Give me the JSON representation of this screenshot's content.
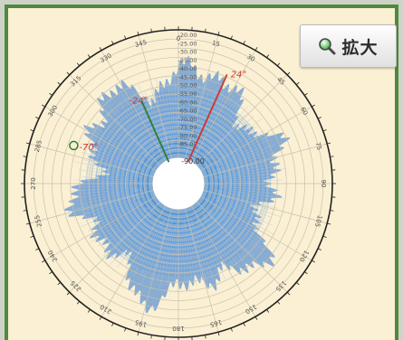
{
  "zoom_button": {
    "label": "拡大",
    "icon": "magnifier-icon"
  },
  "chart_data": {
    "type": "polar",
    "center_label": "-90.00",
    "radial_ticks": [
      "-20.00",
      "-25.00",
      "-30.00",
      "-35.00",
      "-40.00",
      "-45.00",
      "-50.00",
      "-55.00",
      "-60.00",
      "-65.00",
      "-70.00",
      "-75.00",
      "-80.00",
      "-85.00"
    ],
    "angle_labels": [
      "345",
      "0",
      "15",
      "30",
      "45",
      "60",
      "75",
      "90",
      "105",
      "120",
      "135",
      "150",
      "165",
      "180",
      "195",
      "210",
      "225",
      "240",
      "255",
      "270",
      "285",
      "300",
      "315",
      "330"
    ],
    "markers": [
      {
        "name": "24°",
        "angle": 24,
        "color": "#d2352d"
      },
      {
        "name": "-24°",
        "angle": -24,
        "color": "#2e7d32"
      },
      {
        "name": "-70°",
        "angle": -70,
        "color": "#d2352d"
      }
    ],
    "colors": {
      "pattern": "#6b9bd2",
      "pattern_core": "#3a8fde",
      "panel_background": "#fbf0d3",
      "grid": "#c8c1ad",
      "border": "#4f8a3c"
    }
  }
}
